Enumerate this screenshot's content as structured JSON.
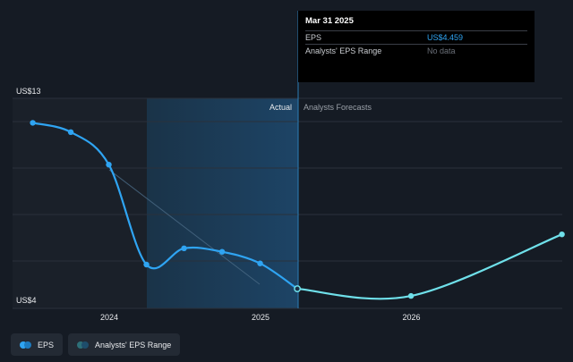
{
  "chart_data": {
    "type": "line",
    "y_axis": {
      "top_label": "US$13",
      "bottom_label": "US$4",
      "ylim": [
        4,
        13
      ]
    },
    "x_axis": {
      "tick_labels": [
        "2024",
        "2025",
        "2026"
      ]
    },
    "regions": {
      "actual_label": "Actual",
      "forecast_label": "Analysts Forecasts"
    },
    "series": [
      {
        "name": "EPS",
        "color": "#2fa4f2",
        "points": [
          {
            "x": "2023-06-30",
            "y": 11.6
          },
          {
            "x": "2023-09-30",
            "y": 11.2
          },
          {
            "x": "2023-12-31",
            "y": 9.8
          },
          {
            "x": "2024-03-31",
            "y": 5.5
          },
          {
            "x": "2024-06-30",
            "y": 6.2
          },
          {
            "x": "2024-09-30",
            "y": 6.05
          },
          {
            "x": "2024-12-31",
            "y": 5.55
          },
          {
            "x": "2025-03-31",
            "y": 4.459
          }
        ]
      },
      {
        "name": "Forecast",
        "color": "#6fe0ea",
        "points": [
          {
            "x": "2025-03-31",
            "y": 4.459
          },
          {
            "x": "2025-12-31",
            "y": 4.15
          },
          {
            "x": "2026-12-31",
            "y": 6.8
          }
        ]
      }
    ]
  },
  "tooltip": {
    "date": "Mar 31 2025",
    "eps_label": "EPS",
    "eps_value": "US$4.459",
    "range_label": "Analysts' EPS Range",
    "range_value": "No data"
  },
  "legend": {
    "eps_label": "EPS",
    "range_label": "Analysts' EPS Range"
  }
}
